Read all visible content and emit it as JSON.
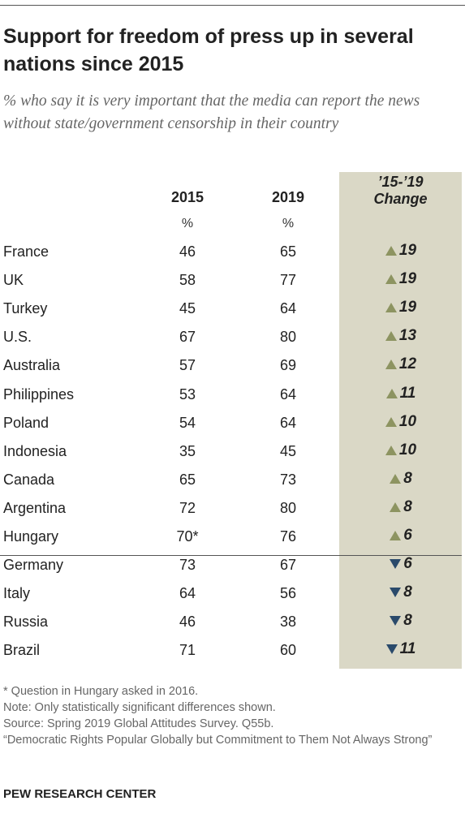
{
  "header": {
    "title": "Support for freedom of press up in several nations since 2015",
    "subtitle": "% who say it is very important that the media can report the news without state/government censorship in their country"
  },
  "columns": {
    "y2015": "2015",
    "y2019": "2019",
    "pct_2015": "%",
    "pct_2019": "%",
    "change_line1": "’15-’19",
    "change_line2": "Change"
  },
  "colors": {
    "up": "#8d9461",
    "down": "#2a4a6b",
    "change_bg": "#dad8c6"
  },
  "chart_data": {
    "type": "table",
    "title": "Support for freedom of press up in several nations since 2015",
    "columns": [
      "2015",
      "2019",
      "’15-’19 Change"
    ],
    "rows": [
      {
        "country": "France",
        "v2015": "46",
        "v2019": "65",
        "change": "19",
        "direction": "up"
      },
      {
        "country": "UK",
        "v2015": "58",
        "v2019": "77",
        "change": "19",
        "direction": "up"
      },
      {
        "country": "Turkey",
        "v2015": "45",
        "v2019": "64",
        "change": "19",
        "direction": "up"
      },
      {
        "country": "U.S.",
        "v2015": "67",
        "v2019": "80",
        "change": "13",
        "direction": "up"
      },
      {
        "country": "Australia",
        "v2015": "57",
        "v2019": "69",
        "change": "12",
        "direction": "up"
      },
      {
        "country": "Philippines",
        "v2015": "53",
        "v2019": "64",
        "change": "11",
        "direction": "up"
      },
      {
        "country": "Poland",
        "v2015": "54",
        "v2019": "64",
        "change": "10",
        "direction": "up"
      },
      {
        "country": "Indonesia",
        "v2015": "35",
        "v2019": "45",
        "change": "10",
        "direction": "up"
      },
      {
        "country": "Canada",
        "v2015": "65",
        "v2019": "73",
        "change": "8",
        "direction": "up"
      },
      {
        "country": "Argentina",
        "v2015": "72",
        "v2019": "80",
        "change": "8",
        "direction": "up"
      },
      {
        "country": "Hungary",
        "v2015": "70*",
        "v2019": "76",
        "change": "6",
        "direction": "up"
      },
      {
        "country": "Germany",
        "v2015": "73",
        "v2019": "67",
        "change": "6",
        "direction": "down"
      },
      {
        "country": "Italy",
        "v2015": "64",
        "v2019": "56",
        "change": "8",
        "direction": "down"
      },
      {
        "country": "Russia",
        "v2015": "46",
        "v2019": "38",
        "change": "8",
        "direction": "down"
      },
      {
        "country": "Brazil",
        "v2015": "71",
        "v2019": "60",
        "change": "11",
        "direction": "down"
      }
    ]
  },
  "footnotes": [
    "* Question in Hungary asked in 2016.",
    "Note: Only statistically significant differences shown.",
    "Source: Spring 2019 Global Attitudes Survey. Q55b.",
    "“Democratic Rights Popular Globally but Commitment to Them Not Always Strong”"
  ],
  "brand": "PEW RESEARCH CENTER"
}
